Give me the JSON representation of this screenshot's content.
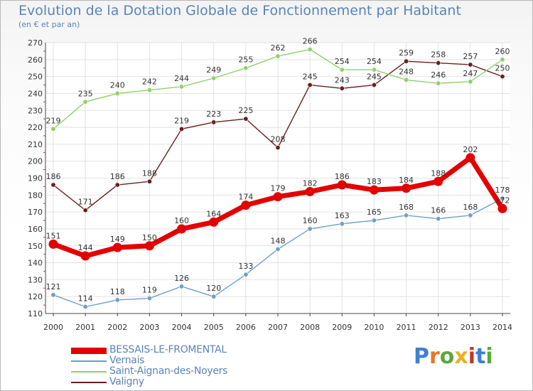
{
  "header": {
    "title": "Evolution de la Dotation Globale de Fonctionnement par Habitant",
    "subtitle": "(en € et par an)"
  },
  "logo": {
    "text": "Proxiti"
  },
  "chart_data": {
    "type": "line",
    "x": [
      2000,
      2001,
      2002,
      2003,
      2004,
      2005,
      2006,
      2007,
      2008,
      2009,
      2010,
      2011,
      2012,
      2013,
      2014
    ],
    "ylim": [
      110,
      270
    ],
    "yticks": [
      110,
      120,
      130,
      140,
      150,
      160,
      170,
      180,
      190,
      200,
      210,
      220,
      230,
      240,
      250,
      260,
      270
    ],
    "grid": true,
    "legend_position": "bottom-left",
    "series": [
      {
        "name": "BESSAIS-LE-FROMENTAL",
        "color": "#e30000",
        "emphasis": true,
        "values": [
          151,
          144,
          149,
          150,
          160,
          164,
          174,
          179,
          182,
          186,
          183,
          184,
          188,
          202,
          172
        ]
      },
      {
        "name": "Vernais",
        "color": "#6f9fc8",
        "emphasis": false,
        "values": [
          121,
          114,
          118,
          119,
          126,
          120,
          133,
          148,
          160,
          163,
          165,
          168,
          166,
          168,
          178
        ]
      },
      {
        "name": "Saint-Aignan-des-Noyers",
        "color": "#8fd16a",
        "emphasis": false,
        "values": [
          219,
          235,
          240,
          242,
          244,
          249,
          255,
          262,
          266,
          254,
          254,
          248,
          246,
          247,
          260
        ]
      },
      {
        "name": "Valigny",
        "color": "#6b1d1d",
        "emphasis": false,
        "values": [
          186,
          171,
          186,
          188,
          219,
          223,
          225,
          208,
          245,
          243,
          245,
          259,
          258,
          257,
          250
        ]
      }
    ]
  }
}
